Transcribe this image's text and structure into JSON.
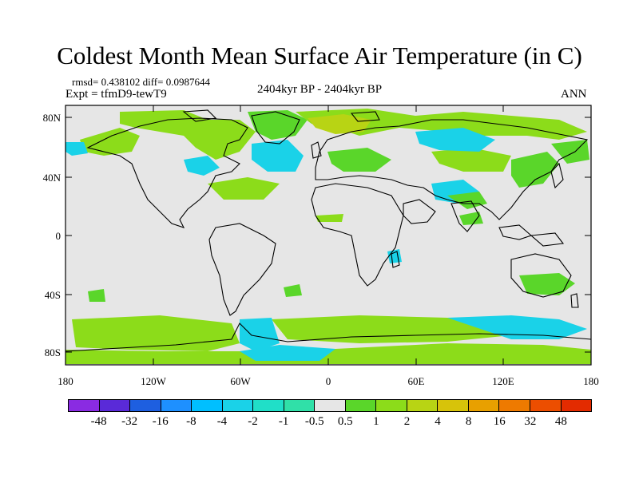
{
  "title": "Coldest Month Mean Surface Air Temperature (in C)",
  "stats_line": "rmsd= 0.438102  diff= 0.0987644",
  "experiment": "Expt = tfmD9-tewT9",
  "period": "2404kyr BP - 2404kyr BP",
  "season": "ANN",
  "map": {
    "projection": "cylindrical equidistant",
    "y_ticks": [
      "80N",
      "40N",
      "0",
      "40S",
      "80S"
    ],
    "x_ticks": [
      "180",
      "120W",
      "60W",
      "0",
      "60E",
      "120E",
      "180"
    ],
    "background_color": "#e6e6e6"
  },
  "colorbar": {
    "labels": [
      "-48",
      "-32",
      "-16",
      "-8",
      "-4",
      "-2",
      "-1",
      "-0.5",
      "0.5",
      "1",
      "2",
      "4",
      "8",
      "16",
      "32",
      "48"
    ],
    "colors": [
      "#8a2be2",
      "#5a2ad8",
      "#1e5fe0",
      "#1e90ff",
      "#00bfff",
      "#1ad2e8",
      "#20dfc8",
      "#30e0a8",
      "#e6e6e6",
      "#5ad62a",
      "#8cdc1a",
      "#b8d414",
      "#d7c30a",
      "#e8a000",
      "#ee7a00",
      "#ec4e00",
      "#e32b00"
    ]
  }
}
